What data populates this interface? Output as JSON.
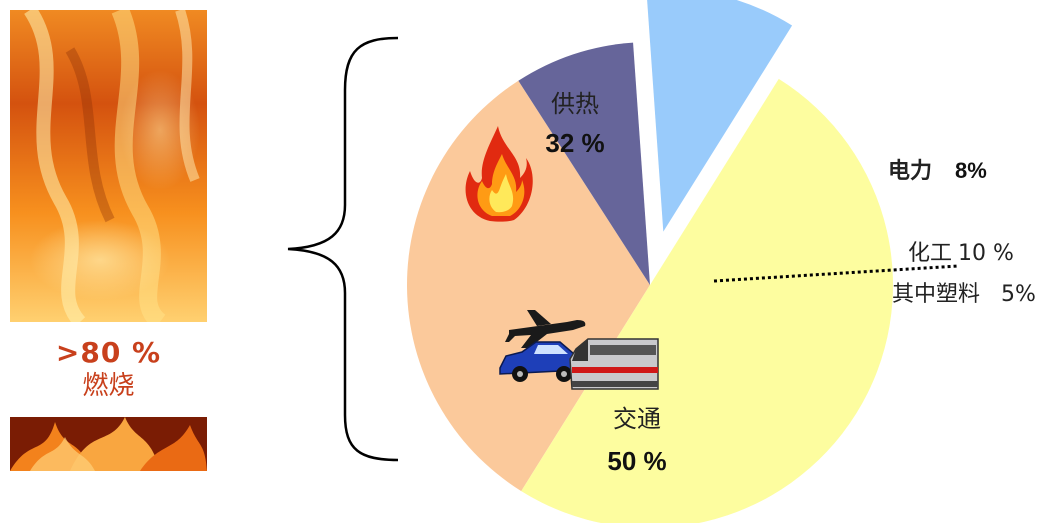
{
  "combustion": {
    "percent": ">80 %",
    "label": "燃烧"
  },
  "chart_data": {
    "type": "pie",
    "slices": [
      {
        "label": "供热",
        "value": 32,
        "value_label": "32 %",
        "color": "#fbc99b"
      },
      {
        "label": "电力",
        "value": 8,
        "value_label": "8%",
        "color": "#66659a"
      },
      {
        "label": "化工",
        "value": 10,
        "value_label": "10 %",
        "color": "#99cbfb",
        "exploded": true,
        "sub_label": "其中塑料",
        "sub_value_label": "5%"
      },
      {
        "label": "交通",
        "value": 50,
        "value_label": "50 %",
        "color": "#fdfd9f"
      }
    ]
  },
  "icons": [
    "fire-icon",
    "airplane-icon",
    "car-icon",
    "train-icon"
  ]
}
